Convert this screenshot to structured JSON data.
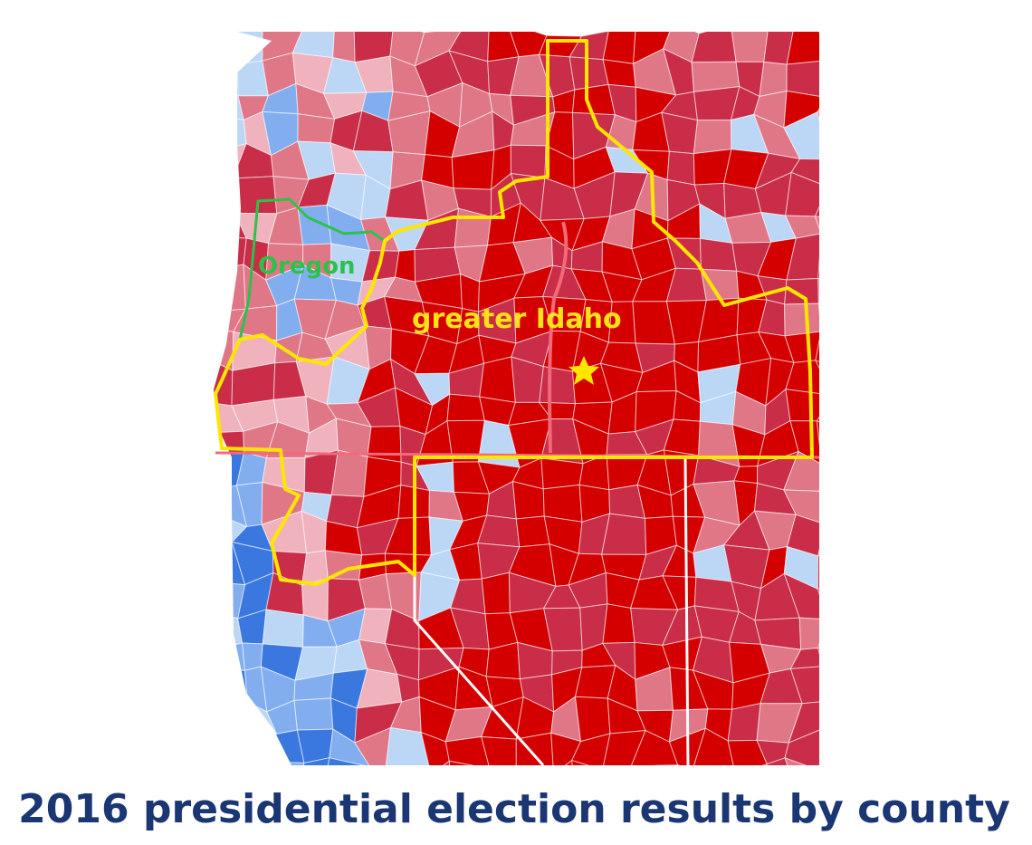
{
  "map": {
    "labels": {
      "oregon": "Oregon",
      "greater_idaho": "greater Idaho"
    }
  },
  "caption": "2016 presidential election results by county"
}
